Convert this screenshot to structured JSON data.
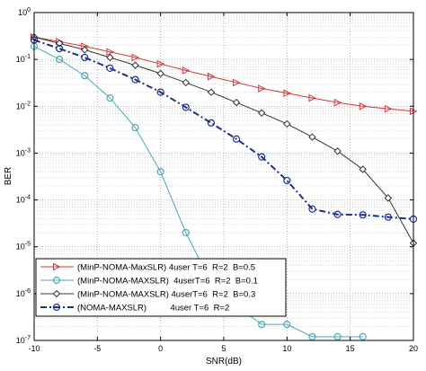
{
  "chart_data": {
    "type": "line",
    "title": "",
    "xlabel": "SNR(dB)",
    "ylabel": "BER",
    "xlim": [
      -10,
      20
    ],
    "ylim": [
      1e-07,
      1
    ],
    "yscale": "log",
    "grid": true,
    "grid_style": "dotted",
    "legend_position": "bottom-left",
    "x_ticks": [
      -10,
      -5,
      0,
      5,
      10,
      15,
      20
    ],
    "y_tick_exponents": [
      -7,
      -6,
      -5,
      -4,
      -3,
      -2,
      -1,
      0
    ],
    "y_tick_base": "10",
    "series": [
      {
        "name": "(MinP-NOMA-MaxSLR) 4user T=6  R=2  B=0.5",
        "color": "#d03a3a",
        "line_style": "solid",
        "marker": "triangle-right",
        "x": [
          -10,
          -8,
          -6,
          -4,
          -2,
          0,
          2,
          4,
          6,
          8,
          10,
          12,
          14,
          16,
          18,
          20
        ],
        "y": [
          0.3,
          0.24,
          0.19,
          0.145,
          0.11,
          0.08,
          0.058,
          0.043,
          0.032,
          0.024,
          0.019,
          0.015,
          0.012,
          0.01,
          0.0088,
          0.0078
        ]
      },
      {
        "name": "(MinP-NOMA-MAXSLR)  4userT=6  R=2  B=0.1",
        "color": "#4aa8b4",
        "line_style": "solid",
        "marker": "circle",
        "x": [
          -10,
          -8,
          -6,
          -4,
          -2,
          0,
          2,
          4,
          6,
          8,
          10,
          12,
          14,
          16
        ],
        "y": [
          0.19,
          0.1,
          0.045,
          0.015,
          0.0035,
          0.0004,
          2e-05,
          1.7e-06,
          5.5e-07,
          2.2e-07,
          2.2e-07,
          1.2e-07,
          1.2e-07,
          1.2e-07
        ]
      },
      {
        "name": "(MinP-NOMA-MAXSLR) 4userT=6  R=2  B=0.3",
        "color": "#333333",
        "line_style": "solid",
        "marker": "diamond",
        "x": [
          -10,
          -8,
          -6,
          -4,
          -2,
          0,
          2,
          4,
          6,
          8,
          10,
          12,
          14,
          16,
          18,
          20
        ],
        "y": [
          0.3,
          0.22,
          0.16,
          0.11,
          0.075,
          0.05,
          0.032,
          0.02,
          0.012,
          0.0072,
          0.0042,
          0.0022,
          0.0011,
          0.00045,
          0.00011,
          1.2e-05
        ]
      },
      {
        "name": "(NOMA-MAXSLR)          4user T=6  R=2",
        "color": "#1c2f8c",
        "line_style": "dashdot",
        "marker": "circle",
        "x": [
          -10,
          -8,
          -6,
          -4,
          -2,
          0,
          2,
          4,
          6,
          8,
          10,
          12,
          14,
          16,
          18,
          20
        ],
        "y": [
          0.26,
          0.17,
          0.11,
          0.065,
          0.037,
          0.02,
          0.0095,
          0.0044,
          0.002,
          0.00083,
          0.00026,
          6.4e-05,
          4.9e-05,
          4.8e-05,
          4.3e-05,
          3.9e-05
        ]
      }
    ]
  }
}
